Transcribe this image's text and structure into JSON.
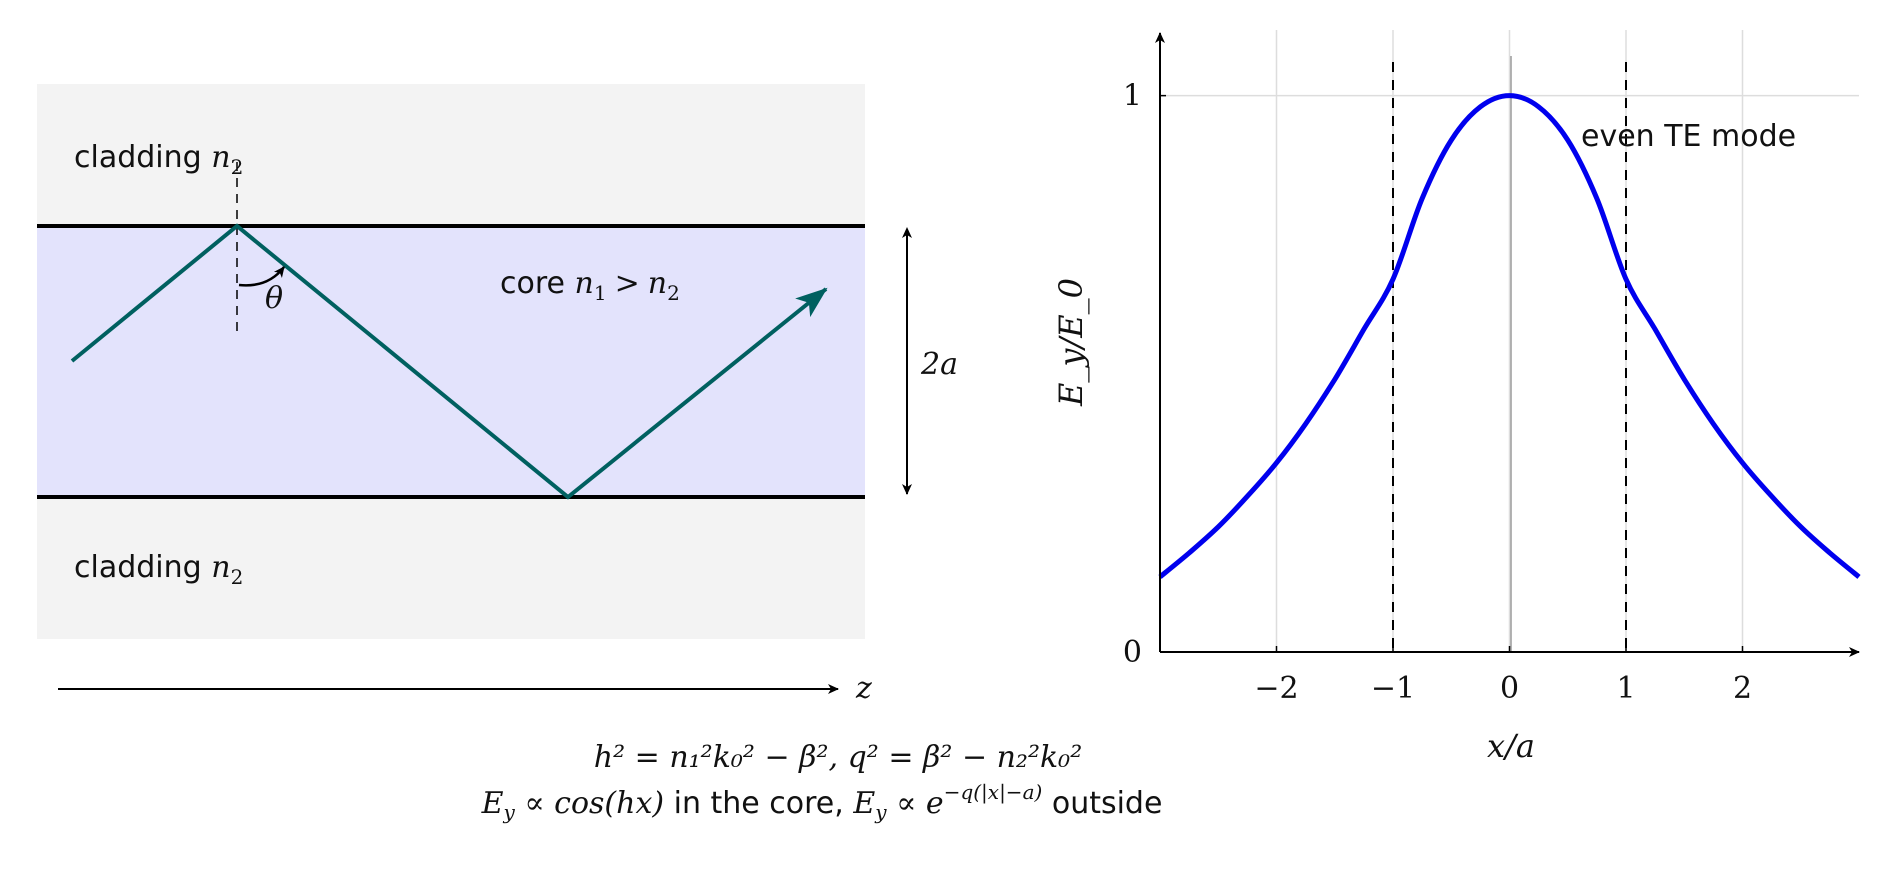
{
  "waveguide": {
    "cladding_top_word": "cladding",
    "cladding_bottom_word": "cladding",
    "cladding_index": "n",
    "cladding_index_sub": "2",
    "core_word": "core",
    "core_relation_n": "n",
    "core_relation_sub1": "1",
    "core_relation_gt": ">",
    "core_relation_sub2": "2",
    "angle_symbol": "θ",
    "thickness_label": "2a",
    "axis_label": "z",
    "colors": {
      "cladding": "#f3f3f3",
      "core": "#e3e3fc",
      "ray": "#006060",
      "interface": "#000000"
    }
  },
  "chart_data": {
    "type": "line",
    "xlabel": "x/a",
    "ylabel": "E_y/E_0",
    "xlim": [
      -3,
      3
    ],
    "ylim": [
      0,
      1.1
    ],
    "x_ticks": [
      -2,
      -1,
      0,
      1,
      2
    ],
    "x_tick_labels": [
      "−2",
      "−1",
      "0",
      "1",
      "2"
    ],
    "y_ticks": [
      0,
      1
    ],
    "y_tick_labels": [
      "0",
      "1"
    ],
    "grid": true,
    "annotation": "even TE mode",
    "core_boundaries": [
      -1,
      1
    ],
    "series": [
      {
        "color": "#0000ee",
        "x": [
          -3,
          -2.75,
          -2.5,
          -2.25,
          -2,
          -1.75,
          -1.5,
          -1.25,
          -1,
          -0.75,
          -0.5,
          -0.25,
          0,
          0.25,
          0.5,
          0.75,
          1,
          1.25,
          1.5,
          1.75,
          2,
          2.25,
          2.5,
          2.75,
          3
        ],
        "y": [
          0.135,
          0.178,
          0.225,
          0.28,
          0.34,
          0.41,
          0.49,
          0.58,
          0.67,
          0.815,
          0.92,
          0.98,
          1.0,
          0.98,
          0.92,
          0.815,
          0.67,
          0.58,
          0.49,
          0.41,
          0.34,
          0.28,
          0.225,
          0.178,
          0.135
        ]
      }
    ]
  },
  "equations": {
    "line1": "h² = n₁²k₀² − β²,   q² = β² − n₂²k₀²",
    "line2_a": "E",
    "line2_a_sub": "y",
    "line2_b": " ∝ cos(hx)",
    "line2_c": " in the core, ",
    "line2_d": "E",
    "line2_d_sub": "y",
    "line2_e": " ∝ e",
    "line2_exp": "−q(|x|−a)",
    "line2_f": " outside"
  }
}
